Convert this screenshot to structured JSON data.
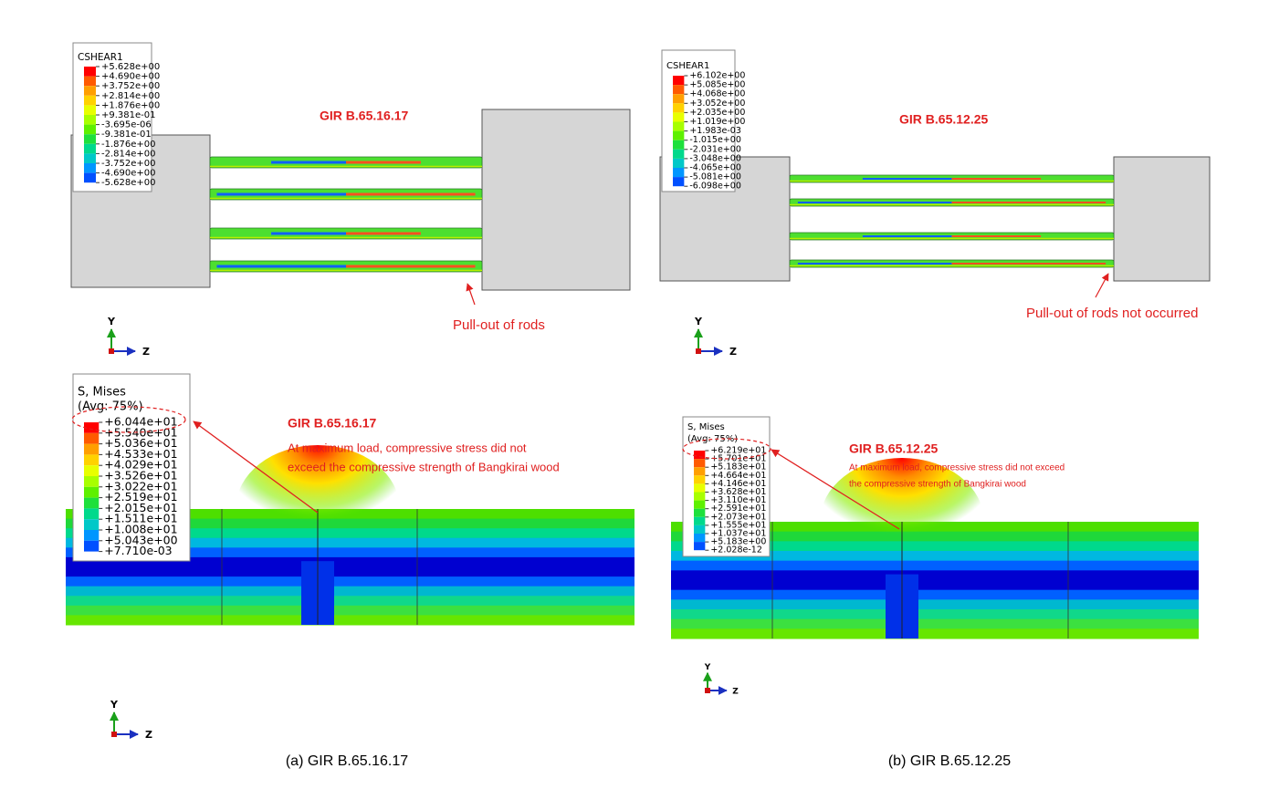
{
  "panels": [
    {
      "caption": "(a) GIR B.65.16.17",
      "top": {
        "legend_title": "CSHEAR1",
        "legend_values": [
          "+5.628e+00",
          "+4.690e+00",
          "+3.752e+00",
          "+2.814e+00",
          "+1.876e+00",
          "+9.381e-01",
          "-3.695e-06",
          "-9.381e-01",
          "-1.876e+00",
          "-2.814e+00",
          "-3.752e+00",
          "-4.690e+00",
          "-5.628e+00"
        ],
        "label": "GIR B.65.16.17",
        "note": "Pull-out of rods",
        "axis_labels": [
          "Y",
          "Z"
        ]
      },
      "bottom": {
        "legend_title": "S, Mises",
        "legend_subtitle": "(Avg: 75%)",
        "legend_values": [
          "+6.044e+01",
          "+5.540e+01",
          "+5.036e+01",
          "+4.533e+01",
          "+4.029e+01",
          "+3.526e+01",
          "+3.022e+01",
          "+2.519e+01",
          "+2.015e+01",
          "+1.511e+01",
          "+1.008e+01",
          "+5.043e+00",
          "+7.710e-03"
        ],
        "label": "GIR B.65.16.17",
        "note_lines": [
          "At maximum load, compressive stress did not",
          "exceed the compressive strength of Bangkirai wood"
        ],
        "axis_labels": [
          "Y",
          "Z"
        ]
      }
    },
    {
      "caption": "(b) GIR B.65.12.25",
      "top": {
        "legend_title": "CSHEAR1",
        "legend_values": [
          "+6.102e+00",
          "+5.085e+00",
          "+4.068e+00",
          "+3.052e+00",
          "+2.035e+00",
          "+1.019e+00",
          "+1.983e-03",
          "-1.015e+00",
          "-2.031e+00",
          "-3.048e+00",
          "-4.065e+00",
          "-5.081e+00",
          "-6.098e+00"
        ],
        "label": "GIR B.65.12.25",
        "note": "Pull-out of rods not occurred",
        "axis_labels": [
          "Y",
          "Z"
        ]
      },
      "bottom": {
        "legend_title": "S, Mises",
        "legend_subtitle": "(Avg: 75%)",
        "legend_values": [
          "+6.219e+01",
          "+5.701e+01",
          "+5.183e+01",
          "+4.664e+01",
          "+4.146e+01",
          "+3.628e+01",
          "+3.110e+01",
          "+2.591e+01",
          "+2.073e+01",
          "+1.555e+01",
          "+1.037e+01",
          "+5.183e+00",
          "+2.028e-12"
        ],
        "label": "GIR B.65.12.25",
        "note_lines": [
          "At maximum load, compressive stress did not exceed",
          "the compressive strength of Bangkirai wood"
        ],
        "axis_labels": [
          "Y",
          "Z"
        ]
      }
    }
  ]
}
